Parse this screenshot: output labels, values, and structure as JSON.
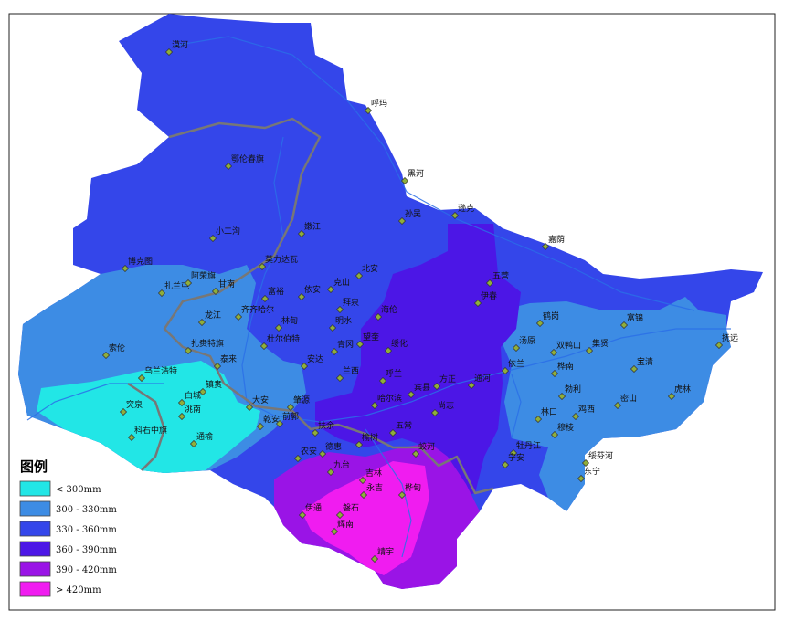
{
  "legend": {
    "title": "图例",
    "items": [
      {
        "label": "< 300mm",
        "color": "#22e6e6"
      },
      {
        "label": "300 - 330mm",
        "color": "#3d8ce4"
      },
      {
        "label": "330 - 360mm",
        "color": "#3446ea"
      },
      {
        "label": "360 - 390mm",
        "color": "#4c16e6"
      },
      {
        "label": "390 - 420mm",
        "color": "#9a14e6"
      },
      {
        "label": "> 420mm",
        "color": "#f01cf0"
      }
    ]
  },
  "places": [
    "漠河",
    "呼玛",
    "黑河",
    "鄂伦春旗",
    "孙吴",
    "逊克",
    "嘉荫",
    "小二沟",
    "嫩江",
    "博克图",
    "莫力达瓦",
    "北安",
    "五营",
    "扎兰屯",
    "阿荣旗",
    "甘南",
    "富裕",
    "克山",
    "依安",
    "拜泉",
    "伊春",
    "海伦",
    "鹤岗",
    "富锦",
    "龙江",
    "齐齐哈尔",
    "林甸",
    "明水",
    "望奎",
    "青冈",
    "杜尔伯特",
    "绥化",
    "汤原",
    "双鸭山",
    "集贤",
    "抚远",
    "索伦",
    "扎赉特旗",
    "泰来",
    "安达",
    "兰西",
    "依兰",
    "桦南",
    "宝清",
    "乌兰浩特",
    "镇赉",
    "呼兰",
    "方正",
    "通河",
    "勃利",
    "虎林",
    "白城",
    "大安",
    "肇源",
    "哈尔滨",
    "宾县",
    "尚志",
    "密山",
    "鸡西",
    "林口",
    "洮南",
    "突泉",
    "乾安",
    "前郭",
    "扶余",
    "五常",
    "牡丹江",
    "穆棱",
    "绥芬河",
    "东宁",
    "科右中旗",
    "通榆",
    "德惠",
    "榆树",
    "蛟河",
    "宁安",
    "农安",
    "九台",
    "吉林",
    "永吉",
    "磐石",
    "桦甸",
    "伊通",
    "辉南",
    "靖宇"
  ]
}
